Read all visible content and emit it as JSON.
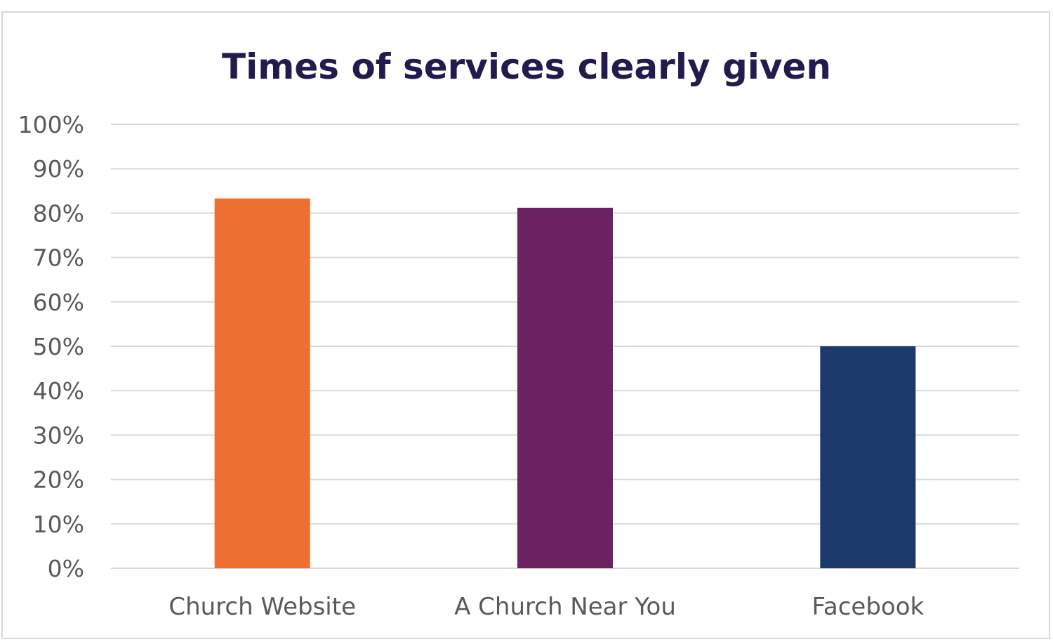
{
  "chart_data": {
    "type": "bar",
    "title": "Times of services clearly given",
    "xlabel": "",
    "ylabel": "",
    "ylim": [
      0,
      1
    ],
    "y_ticks": [
      "0%",
      "10%",
      "20%",
      "30%",
      "40%",
      "50%",
      "60%",
      "70%",
      "80%",
      "90%",
      "100%"
    ],
    "categories": [
      "Church Website",
      "A Church Near You",
      "Facebook"
    ],
    "values": [
      0.833,
      0.812,
      0.5
    ],
    "colors": [
      "#ed7032",
      "#6a2360",
      "#1b3a6b"
    ],
    "grid": true,
    "legend": "none"
  }
}
